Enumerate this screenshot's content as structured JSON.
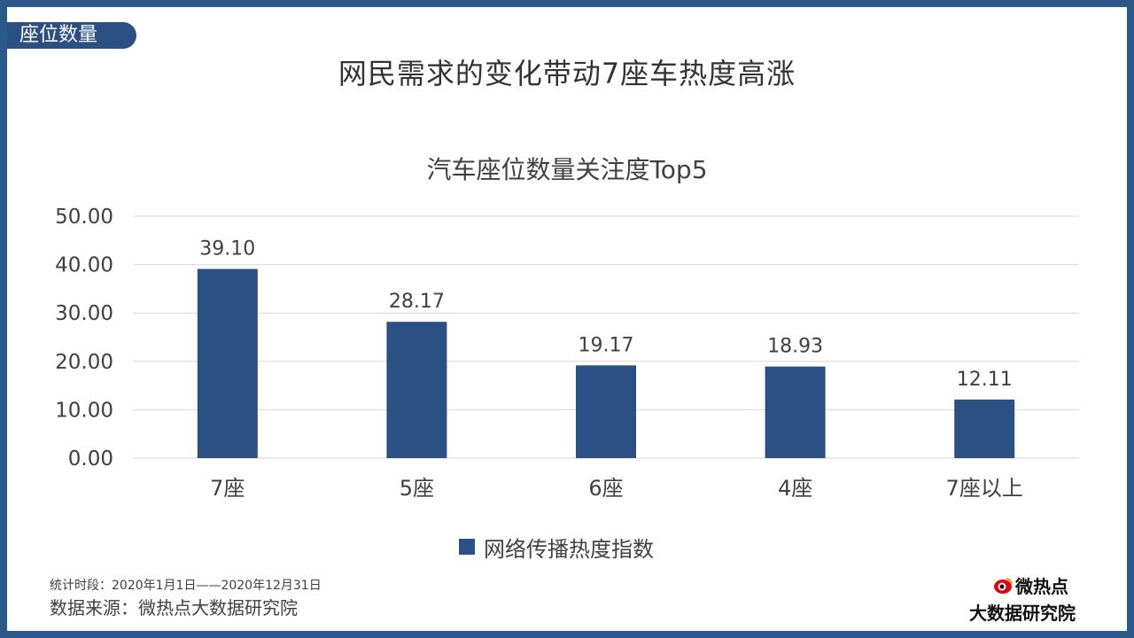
{
  "slide": {
    "section_tag": "座位数量",
    "title": "网民需求的变化带动7座车热度高涨",
    "stat_period": "统计时段：2020年1月1日——2020年12月31日",
    "source": "数据来源：微热点大数据研究院",
    "logo_brand": "微热点",
    "logo_sub": "大数据研究院"
  },
  "colors": {
    "frame": "#2b5a8a",
    "bar": "#2b5083",
    "grid": "#d9d9d9"
  },
  "chart_data": {
    "type": "bar",
    "title": "汽车座位数量关注度Top5",
    "categories": [
      "7座",
      "5座",
      "6座",
      "4座",
      "7座以上"
    ],
    "series": [
      {
        "name": "网络传播热度指数",
        "values": [
          39.1,
          28.17,
          19.17,
          18.93,
          12.11
        ]
      }
    ],
    "ylim": [
      0,
      50
    ],
    "yticks": [
      "0.00",
      "10.00",
      "20.00",
      "30.00",
      "40.00",
      "50.00"
    ],
    "data_labels": [
      "39.10",
      "28.17",
      "19.17",
      "18.93",
      "12.11"
    ],
    "grid": true,
    "legend": "bottom",
    "xlabel": "",
    "ylabel": ""
  }
}
